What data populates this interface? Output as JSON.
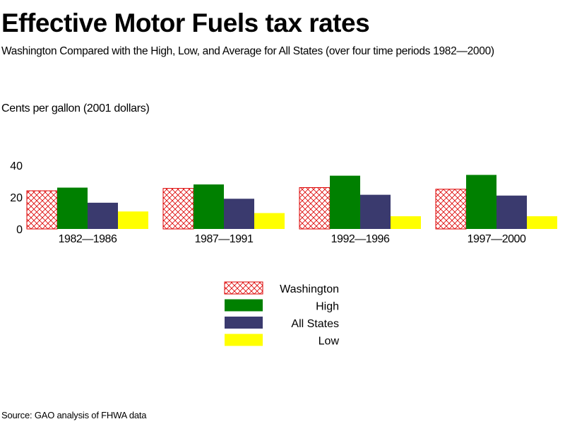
{
  "title": "Effective Motor Fuels tax rates",
  "subtitle": "Washington Compared with the High, Low, and Average for All States (over four time periods 1982—2000)",
  "source": "Source: GAO analysis of FHWA data",
  "chart_data": {
    "type": "bar",
    "ylabel": "Cents per gallon (2001 dollars)",
    "xlabel": "",
    "ylim": [
      0,
      40
    ],
    "yticks": [
      "0",
      "20",
      "40"
    ],
    "grid": false,
    "legend_position": "bottom-center",
    "categories": [
      "1982—1986",
      "1987—1991",
      "1992—1996",
      "1997—2000"
    ],
    "series": [
      {
        "name": "Washington",
        "values": [
          24,
          25.5,
          26,
          25
        ],
        "color": "#dd0000",
        "pattern": "crosshatch"
      },
      {
        "name": "High",
        "values": [
          26,
          28,
          33.5,
          34
        ],
        "color": "#008000"
      },
      {
        "name": "All States",
        "values": [
          16.5,
          19,
          21.5,
          21
        ],
        "color": "#3a3a6e"
      },
      {
        "name": "Low",
        "values": [
          11,
          10,
          8,
          8
        ],
        "color": "#ffff00"
      }
    ]
  }
}
